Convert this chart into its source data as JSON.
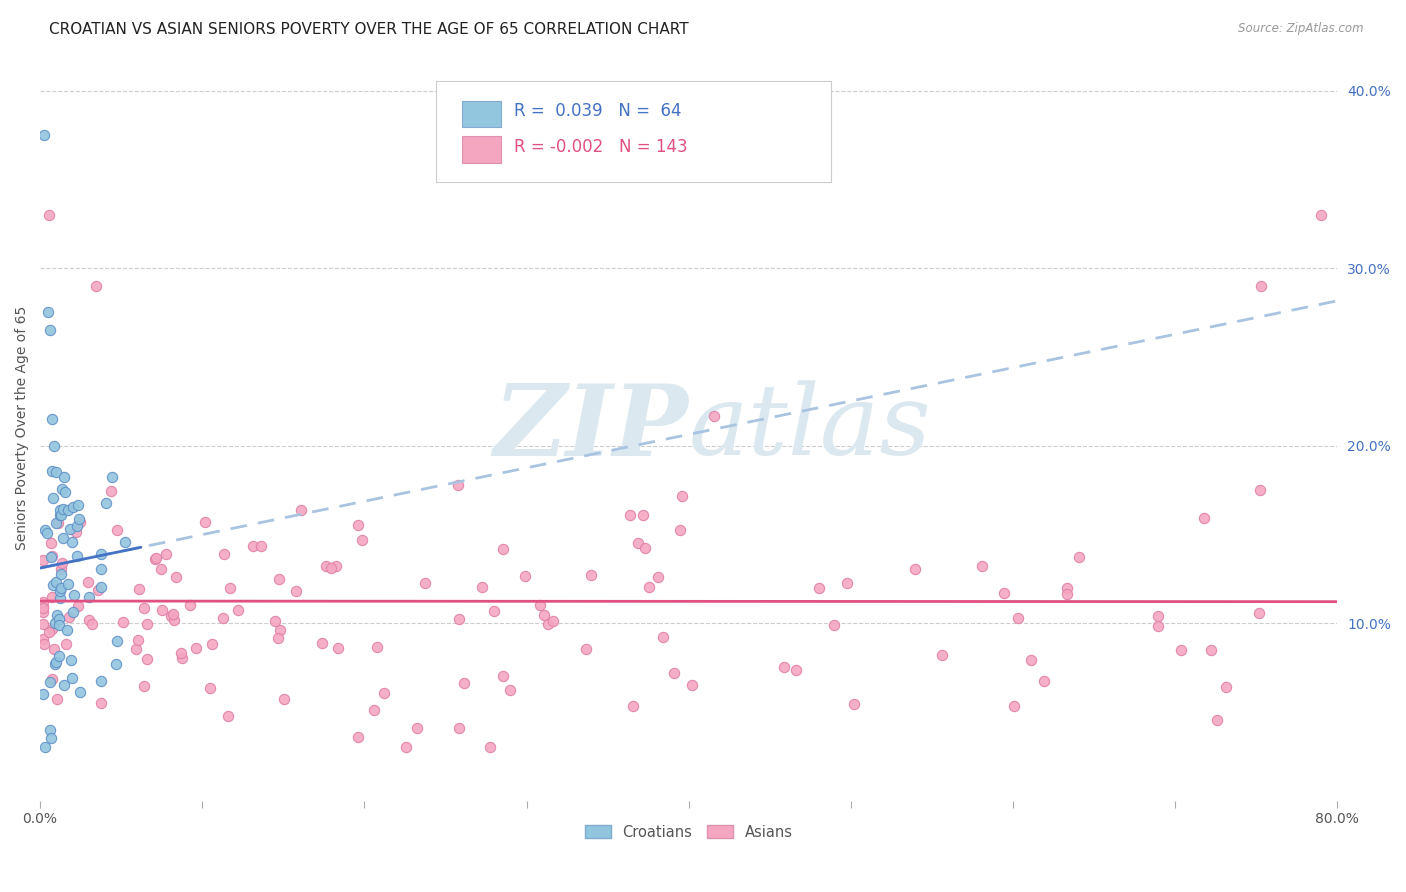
{
  "title": "CROATIAN VS ASIAN SENIORS POVERTY OVER THE AGE OF 65 CORRELATION CHART",
  "source": "Source: ZipAtlas.com",
  "ylabel": "Seniors Poverty Over the Age of 65",
  "xlim": [
    0.0,
    0.8
  ],
  "ylim": [
    0.0,
    0.42
  ],
  "xticks": [
    0.0,
    0.1,
    0.2,
    0.3,
    0.4,
    0.5,
    0.6,
    0.7,
    0.8
  ],
  "xticklabels": [
    "0.0%",
    "",
    "",
    "",
    "",
    "",
    "",
    "",
    "80.0%"
  ],
  "yticks_right": [
    0.1,
    0.2,
    0.3,
    0.4
  ],
  "ytick_right_labels": [
    "10.0%",
    "20.0%",
    "30.0%",
    "40.0%"
  ],
  "legend_r_croatian": "0.039",
  "legend_n_croatian": "64",
  "legend_r_asian": "-0.002",
  "legend_n_asian": "143",
  "croatian_color": "#92c5de",
  "asian_color": "#f4a6c0",
  "trendline_croatian_solid_color": "#4472c4",
  "trendline_croatian_dashed_color": "#a8c4e0",
  "trendline_asian_color": "#e05080",
  "background_color": "#ffffff",
  "grid_color": "#c8c8c8",
  "watermark_color": "#dce8f0",
  "title_fontsize": 11,
  "axis_label_fontsize": 10,
  "tick_fontsize": 10,
  "right_tick_color": "#4472c4",
  "legend_text_croatian_color": "#4472c4",
  "legend_text_asian_color": "#e05080"
}
